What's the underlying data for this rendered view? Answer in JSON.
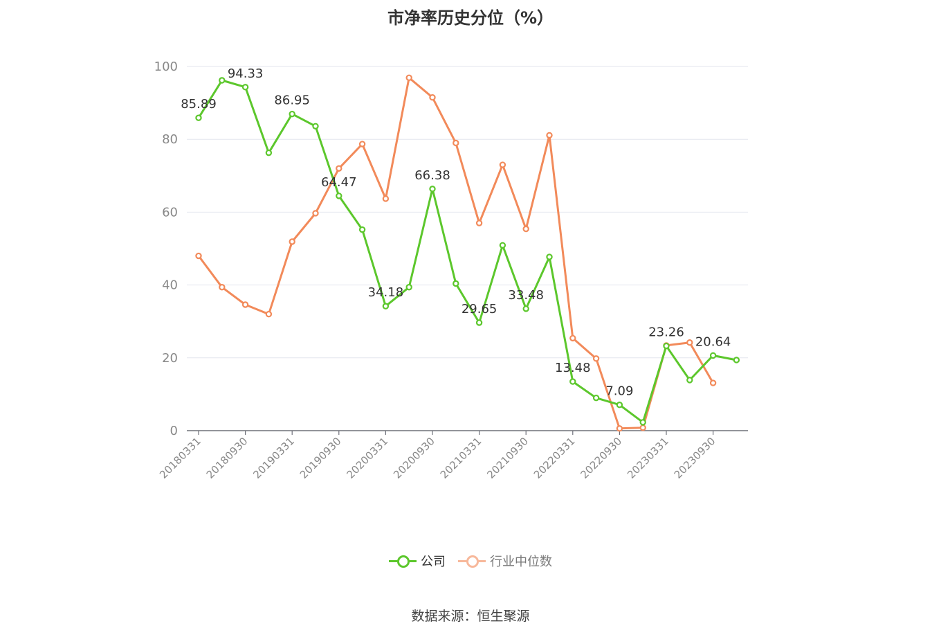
{
  "chart_data": {
    "type": "line",
    "title": "市净率历史分位（%）",
    "ylim": [
      0,
      100
    ],
    "yticks": [
      0,
      20,
      40,
      60,
      80,
      100
    ],
    "grid": true,
    "legend_position": "bottom-center",
    "x": [
      "20180331",
      "20180630",
      "20180930",
      "20181231",
      "20190331",
      "20190630",
      "20190930",
      "20191231",
      "20200331",
      "20200630",
      "20200930",
      "20201231",
      "20210331",
      "20210630",
      "20210930",
      "20211231",
      "20220331",
      "20220630",
      "20220930",
      "20221231",
      "20230331",
      "20230630",
      "20230930",
      "20231231"
    ],
    "x_tick_labels": [
      "20180331",
      "20180930",
      "20190331",
      "20190930",
      "20200331",
      "20200930",
      "20210331",
      "20210930",
      "20220331",
      "20220930",
      "20230331",
      "20230930"
    ],
    "series": [
      {
        "name": "公司",
        "color": "#5cc72c",
        "values": [
          85.89,
          96.2,
          94.33,
          76.3,
          86.95,
          83.6,
          64.47,
          55.2,
          34.18,
          39.4,
          66.38,
          40.4,
          29.65,
          50.9,
          33.48,
          47.7,
          13.48,
          9.0,
          7.09,
          2.3,
          23.26,
          13.9,
          20.64,
          19.4
        ],
        "data_labels": [
          {
            "index": 0,
            "text": "85.89"
          },
          {
            "index": 2,
            "text": "94.33"
          },
          {
            "index": 4,
            "text": "86.95"
          },
          {
            "index": 6,
            "text": "64.47"
          },
          {
            "index": 8,
            "text": "34.18"
          },
          {
            "index": 10,
            "text": "66.38"
          },
          {
            "index": 12,
            "text": "29.65"
          },
          {
            "index": 14,
            "text": "33.48"
          },
          {
            "index": 16,
            "text": "13.48"
          },
          {
            "index": 18,
            "text": "7.09"
          },
          {
            "index": 20,
            "text": "23.26"
          },
          {
            "index": 22,
            "text": "20.64"
          }
        ]
      },
      {
        "name": "行业中位数",
        "color": "#f28a5a",
        "values": [
          48.0,
          39.4,
          34.6,
          32.0,
          51.9,
          59.7,
          72.0,
          78.7,
          63.7,
          96.9,
          91.5,
          79.0,
          57.0,
          73.0,
          55.4,
          81.1,
          25.4,
          19.8,
          0.6,
          0.8,
          23.4,
          24.2,
          13.1,
          null
        ]
      }
    ],
    "source": "数据来源：恒生聚源"
  }
}
